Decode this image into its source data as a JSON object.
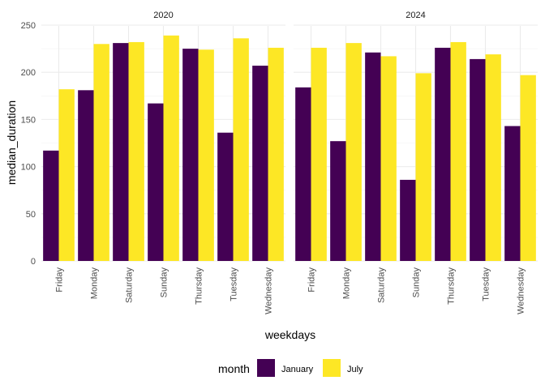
{
  "chart_data": {
    "type": "bar",
    "facet_variable": "year",
    "facets": [
      {
        "label": "2020",
        "series": [
          {
            "name": "January",
            "values": [
              117,
              181,
              231,
              167,
              225,
              136,
              207
            ]
          },
          {
            "name": "July",
            "values": [
              182,
              230,
              232,
              239,
              224,
              236,
              226
            ]
          }
        ]
      },
      {
        "label": "2024",
        "series": [
          {
            "name": "January",
            "values": [
              184,
              127,
              221,
              86,
              226,
              214,
              143
            ]
          },
          {
            "name": "July",
            "values": [
              226,
              231,
              217,
              199,
              232,
              219,
              197
            ]
          }
        ]
      }
    ],
    "categories": [
      "Friday",
      "Monday",
      "Saturday",
      "Sunday",
      "Thursday",
      "Tuesday",
      "Wednesday"
    ],
    "xlabel": "weekdays",
    "ylabel": "median_duration",
    "ylim": [
      0,
      250
    ],
    "yticks": [
      0,
      50,
      100,
      150,
      200,
      250
    ],
    "grid": true,
    "legend": {
      "title": "month",
      "position": "bottom",
      "entries": [
        "January",
        "July"
      ]
    },
    "colors": {
      "January": "#440154",
      "July": "#FDE725"
    }
  }
}
